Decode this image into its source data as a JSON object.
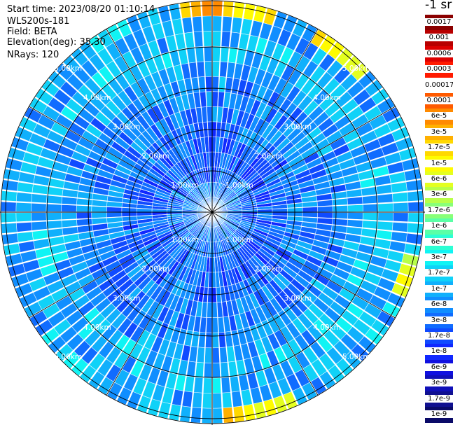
{
  "info": {
    "start_time": "Start time: 2023/08/20 01:10:14",
    "device": "WLS200s-181",
    "field": "Field: BETA",
    "elevation": "Elevation(deg): 35.30",
    "nrays": "NRays: 120"
  },
  "colorbar": {
    "title": "-1 sr",
    "levels": [
      {
        "label": "0.0017",
        "color": "#8b0000"
      },
      {
        "label": "0.001",
        "color": "#b80000"
      },
      {
        "label": "0.0006",
        "color": "#dd0000"
      },
      {
        "label": "0.0003",
        "color": "#ff1a00"
      },
      {
        "label": "0.00017",
        "color": "#ffffff"
      },
      {
        "label": "0.0001",
        "color": "#ff5a00"
      },
      {
        "label": "6e-5",
        "color": "#ff8a00"
      },
      {
        "label": "3e-5",
        "color": "#ffb000"
      },
      {
        "label": "1.7e-5",
        "color": "#ffd800"
      },
      {
        "label": "1e-5",
        "color": "#fffb00"
      },
      {
        "label": "6e-6",
        "color": "#e4ff20"
      },
      {
        "label": "3e-6",
        "color": "#b8ff48"
      },
      {
        "label": "1.7e-6",
        "color": "#88ff78"
      },
      {
        "label": "1e-6",
        "color": "#5affa6"
      },
      {
        "label": "6e-7",
        "color": "#2cffd4"
      },
      {
        "label": "3e-7",
        "color": "#10f4f4"
      },
      {
        "label": "1.7e-7",
        "color": "#10d2f8"
      },
      {
        "label": "1e-7",
        "color": "#10b0fc"
      },
      {
        "label": "6e-8",
        "color": "#108eff"
      },
      {
        "label": "3e-8",
        "color": "#106cff"
      },
      {
        "label": "1.7e-8",
        "color": "#104aff"
      },
      {
        "label": "1e-8",
        "color": "#1028ff"
      },
      {
        "label": "6e-9",
        "color": "#1010e0"
      },
      {
        "label": "3e-9",
        "color": "#1010b8"
      },
      {
        "label": "1.7e-9",
        "color": "#101090"
      },
      {
        "label": "1e-9",
        "color": "#0a0a68"
      }
    ]
  },
  "chart_data": {
    "type": "heatmap",
    "projection": "polar (PPI scan)",
    "field": "BETA",
    "n_rays": 120,
    "n_range_gates": 14,
    "ring_labels": [
      "1.00km",
      "2.00km",
      "3.00km",
      "4.00km",
      "5.00km"
    ],
    "radial_profile_log10_beta": [
      -7.3,
      -7.4,
      -7.5,
      -7.6,
      -7.6,
      -7.5,
      -7.4,
      -7.4,
      -7.3,
      -7.2,
      -7.0,
      -7.0,
      -7.1,
      -7.0
    ],
    "enhanced_sectors": [
      {
        "azimuth_range_deg": [
          350,
          15
        ],
        "range_km": [
          4.8,
          5.5
        ],
        "log10_beta": -4.7
      },
      {
        "azimuth_range_deg": [
          30,
          45
        ],
        "range_km": [
          4.6,
          5.5
        ],
        "log10_beta": -5.0
      },
      {
        "azimuth_range_deg": [
          100,
          112
        ],
        "range_km": [
          4.8,
          5.6
        ],
        "log10_beta": -5.1
      },
      {
        "azimuth_range_deg": [
          155,
          175
        ],
        "range_km": [
          4.6,
          5.4
        ],
        "log10_beta": -5.0
      }
    ]
  }
}
